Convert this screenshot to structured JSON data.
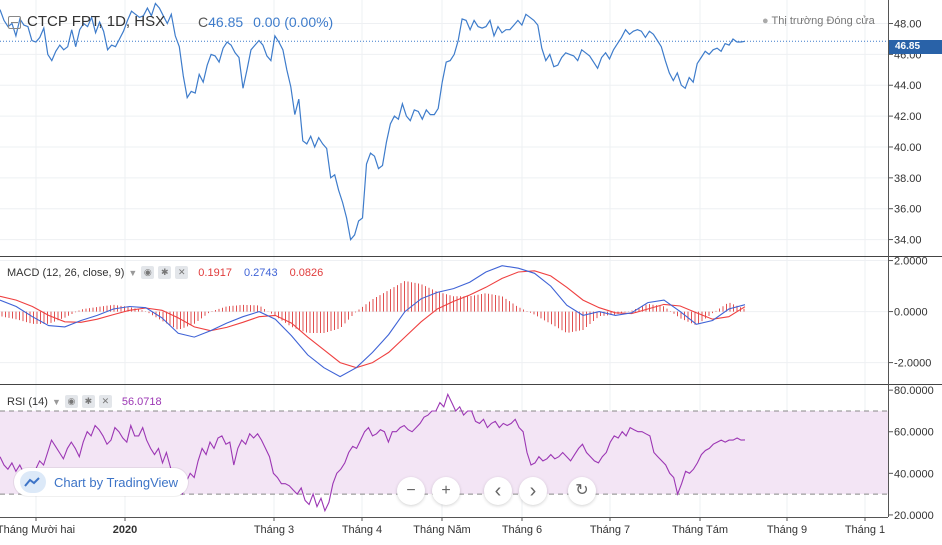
{
  "header": {
    "symbol_title": "CTCP FPT, 1D, HSX",
    "close_label": "C",
    "close_value": "46.85",
    "change": "0.00 (0.00%)",
    "market_status": "Thị trường Đóng cửa",
    "last_price_tag": "46.85"
  },
  "macd_legend": {
    "label": "MACD (12, 26, close, 9)",
    "v1": "0.1917",
    "v2": "0.2743",
    "v3": "0.0826"
  },
  "rsi_legend": {
    "label": "RSI (14)",
    "value": "56.0718"
  },
  "branding": {
    "text": "Chart by TradingView"
  },
  "controls": {
    "zoom_out": "−",
    "zoom_in": "+",
    "scroll_left": "‹",
    "scroll_right": "›",
    "reset": "↻"
  },
  "colors": {
    "price": "#3e7ccb",
    "macd": "#3f63d6",
    "signal": "#ef4040",
    "hist": "#e05050",
    "rsi": "#9c37b4",
    "rsi_band": "#f3e5f5",
    "price_tag": "#2962a8"
  },
  "chart_data": [
    {
      "type": "line",
      "title": "CTCP FPT, 1D, HSX",
      "x_tick_labels": [
        "Tháng Mười hai",
        "2020",
        "Tháng 3",
        "Tháng 4",
        "Tháng Năm",
        "Tháng 6",
        "Tháng 7",
        "Tháng Tám",
        "Tháng 9",
        "Tháng 1"
      ],
      "y_tick_labels": [
        "48.00",
        "46.00",
        "44.00",
        "42.00",
        "40.00",
        "38.00",
        "36.00",
        "34.00"
      ],
      "ylim": [
        33,
        49.2
      ],
      "last_value": 46.85,
      "series": [
        {
          "values": [
            48.9,
            48.2,
            47.8,
            48.0,
            47.2,
            48.3,
            47.9,
            47.8,
            46.9,
            46.8,
            47.1,
            47.7,
            46.0,
            45.6,
            46.2,
            46.6,
            46.3,
            46.5,
            47.6,
            46.5,
            47.6,
            48.0,
            47.8,
            48.4,
            47.4,
            48.1,
            47.5,
            46.3,
            46.6,
            46.5,
            47.0,
            47.5,
            48.2,
            48.8,
            48.6,
            48.4,
            48.5,
            49.0,
            48.5,
            49.3,
            49.0,
            48.5,
            48.0,
            48.6,
            47.2,
            46.5,
            44.6,
            43.2,
            43.6,
            43.5,
            44.7,
            44.2,
            45.3,
            46.0,
            45.9,
            45.5,
            46.4,
            46.8,
            46.6,
            46.1,
            45.8,
            43.8,
            45.0,
            46.3,
            46.6,
            46.9,
            46.6,
            45.9,
            45.6,
            47.2,
            46.8,
            46.3,
            45.0,
            43.9,
            42.1,
            43.1,
            40.4,
            40.2,
            40.7,
            40.0,
            40.6,
            40.2,
            39.9,
            38.0,
            38.2,
            37.2,
            36.4,
            35.4,
            34.0,
            34.3,
            35.2,
            35.4,
            38.9,
            39.6,
            39.4,
            38.6,
            38.8,
            40.3,
            41.5,
            42.0,
            41.8,
            42.8,
            42.0,
            41.7,
            42.4,
            42.3,
            41.8,
            42.4,
            42.1,
            42.1,
            42.5,
            44.2,
            45.5,
            45.6,
            46.0,
            46.9,
            48.3,
            48.2,
            47.6,
            48.2,
            47.8,
            47.7,
            47.8,
            48.2,
            47.2,
            47.8,
            47.4,
            47.6,
            47.6,
            47.9,
            48.2,
            47.9,
            48.6,
            48.4,
            48.2,
            47.9,
            46.4,
            45.6,
            46.0,
            45.2,
            45.3,
            45.8,
            46.1,
            46.0,
            45.9,
            45.6,
            46.3,
            46.1,
            45.9,
            45.5,
            45.1,
            45.8,
            46.1,
            45.7,
            46.3,
            46.7,
            47.1,
            47.6,
            47.3,
            47.5,
            47.6,
            47.5,
            47.1,
            47.5,
            47.3,
            46.9,
            46.5,
            45.6,
            44.8,
            44.3,
            44.8,
            44.0,
            43.8,
            44.5,
            44.2,
            45.4,
            45.8,
            46.2,
            46.0,
            46.3,
            46.4,
            46.2,
            46.7,
            46.6,
            47.0,
            46.8,
            46.8,
            46.85
          ]
        }
      ]
    },
    {
      "type": "line",
      "title": "MACD (12, 26, close, 9)",
      "y_tick_labels": [
        "2.0000",
        "0.0000",
        "-2.0000"
      ],
      "ylim": [
        -2.8,
        2.1
      ],
      "values_shown": [
        0.1917,
        0.2743,
        0.0826
      ],
      "series": [
        {
          "name": "MACD",
          "values": [
            0.45,
            0.2,
            -0.2,
            -0.55,
            -0.6,
            -0.35,
            -0.15,
            0.1,
            0.2,
            0.15,
            -0.25,
            -0.85,
            -1.0,
            -0.75,
            -0.45,
            -0.2,
            0.0,
            -0.3,
            -0.95,
            -1.7,
            -2.2,
            -2.55,
            -2.2,
            -1.6,
            -0.9,
            0.0,
            0.5,
            0.75,
            0.9,
            1.15,
            1.55,
            1.8,
            1.7,
            1.5,
            1.0,
            0.25,
            -0.15,
            0.0,
            -0.15,
            -0.05,
            0.35,
            0.45,
            0.0,
            -0.5,
            -0.35,
            0.1,
            0.27
          ]
        },
        {
          "name": "Signal",
          "values": [
            0.6,
            0.45,
            0.2,
            -0.15,
            -0.4,
            -0.42,
            -0.3,
            -0.12,
            0.05,
            0.14,
            0.05,
            -0.25,
            -0.6,
            -0.75,
            -0.62,
            -0.42,
            -0.2,
            -0.15,
            -0.45,
            -1.0,
            -1.5,
            -2.0,
            -2.2,
            -2.0,
            -1.6,
            -1.0,
            -0.4,
            0.1,
            0.4,
            0.65,
            0.95,
            1.3,
            1.55,
            1.6,
            1.4,
            0.95,
            0.45,
            0.15,
            -0.05,
            -0.08,
            0.1,
            0.28,
            0.22,
            -0.05,
            -0.3,
            -0.2,
            0.19
          ]
        }
      ]
    },
    {
      "type": "line",
      "title": "RSI (14)",
      "y_tick_labels": [
        "80.0000",
        "60.0000",
        "40.0000",
        "20.0000"
      ],
      "ylim": [
        19,
        82
      ],
      "bands": [
        30,
        70
      ],
      "last_value": 56.0718,
      "series": [
        {
          "name": "RSI",
          "values": [
            48,
            44,
            42,
            45,
            41,
            44,
            40,
            42,
            38,
            42,
            46,
            44,
            50,
            56,
            53,
            50,
            47,
            52,
            55,
            52,
            48,
            55,
            60,
            58,
            63,
            61,
            58,
            54,
            56,
            62,
            60,
            57,
            55,
            63,
            58,
            58,
            62,
            56,
            52,
            49,
            52,
            45,
            50,
            43,
            35,
            32,
            30,
            36,
            40,
            38,
            46,
            52,
            49,
            55,
            52,
            57,
            58,
            54,
            55,
            44,
            52,
            56,
            54,
            59,
            57,
            59,
            56,
            52,
            48,
            40,
            38,
            35,
            35,
            34,
            32,
            30,
            33,
            27,
            25,
            30,
            24,
            28,
            22,
            26,
            35,
            40,
            42,
            45,
            50,
            53,
            52,
            56,
            60,
            62,
            58,
            59,
            61,
            60,
            55,
            60,
            60,
            62,
            63,
            61,
            60,
            62,
            64,
            67,
            68,
            70,
            70,
            74,
            72,
            78,
            74,
            70,
            72,
            68,
            70,
            70,
            65,
            64,
            66,
            62,
            64,
            65,
            62,
            64,
            63,
            64,
            66,
            62,
            60,
            50,
            44,
            45,
            48,
            46,
            47,
            49,
            47,
            48,
            50,
            48,
            46,
            49,
            52,
            54,
            50,
            48,
            46,
            45,
            48,
            50,
            55,
            58,
            57,
            60,
            58,
            62,
            61,
            60,
            60,
            59,
            58,
            50,
            48,
            46,
            44,
            40,
            38,
            30,
            35,
            41,
            40,
            42,
            45,
            49,
            51,
            52,
            54,
            55,
            56,
            55,
            56,
            56,
            57,
            56,
            56.07
          ]
        }
      ]
    }
  ]
}
